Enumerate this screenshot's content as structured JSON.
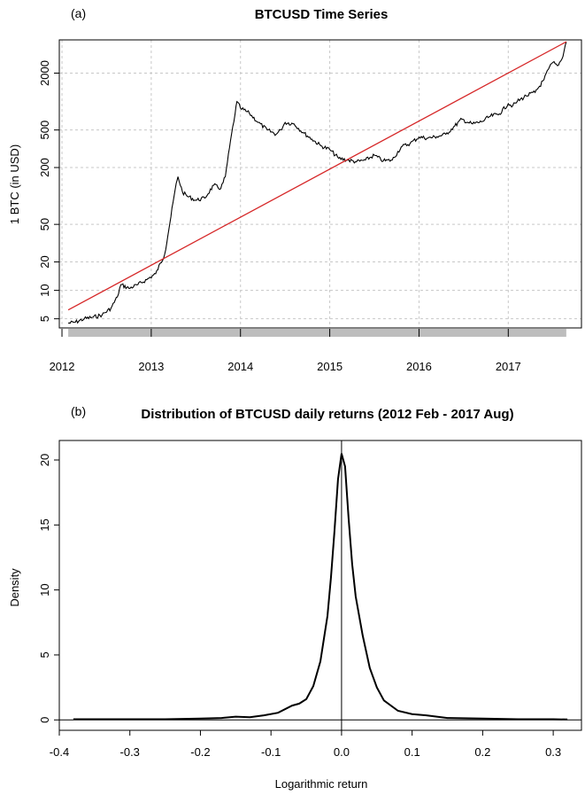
{
  "chart_data": [
    {
      "panel": "(a)",
      "type": "line",
      "title": "BTCUSD Time Series",
      "xlabel": "",
      "ylabel": "1 BTC (in USD)",
      "y_scale": "log",
      "ylim": [
        4,
        4500
      ],
      "xlim": [
        2011.97,
        2017.82
      ],
      "grid": true,
      "x_ticks": [
        2012,
        2013,
        2014,
        2015,
        2016,
        2017
      ],
      "x_tick_labels": [
        "2012",
        "2013",
        "2014",
        "2015",
        "2016",
        "2017"
      ],
      "y_ticks": [
        5,
        10,
        20,
        50,
        200,
        500,
        2000
      ],
      "y_tick_labels": [
        "5",
        "10",
        "20",
        "50",
        "200",
        "500",
        "2000"
      ],
      "series": [
        {
          "kind": "price",
          "color": "#000000",
          "x": [
            2012.07,
            2012.15,
            2012.25,
            2012.35,
            2012.45,
            2012.55,
            2012.62,
            2012.66,
            2012.75,
            2012.85,
            2012.95,
            2013.05,
            2013.15,
            2013.22,
            2013.27,
            2013.3,
            2013.35,
            2013.4,
            2013.5,
            2013.6,
            2013.7,
            2013.78,
            2013.83,
            2013.9,
            2013.94,
            2013.96,
            2014.0,
            2014.1,
            2014.2,
            2014.3,
            2014.4,
            2014.45,
            2014.5,
            2014.6,
            2014.7,
            2014.8,
            2014.9,
            2015.0,
            2015.1,
            2015.2,
            2015.3,
            2015.4,
            2015.5,
            2015.6,
            2015.7,
            2015.8,
            2015.9,
            2016.0,
            2016.1,
            2016.2,
            2016.3,
            2016.4,
            2016.48,
            2016.55,
            2016.6,
            2016.7,
            2016.8,
            2016.9,
            2017.0,
            2017.05,
            2017.1,
            2017.2,
            2017.3,
            2017.4,
            2017.45,
            2017.5,
            2017.55,
            2017.6,
            2017.65
          ],
          "y": [
            4.5,
            4.6,
            5.0,
            5.2,
            5.5,
            6.5,
            8.5,
            11.5,
            10.5,
            11.5,
            13.0,
            15.0,
            24.0,
            60.0,
            120.0,
            160.0,
            110.0,
            100.0,
            90.0,
            95.0,
            130.0,
            120.0,
            160.0,
            450.0,
            750.0,
            1000.0,
            850.0,
            750.0,
            600.0,
            500.0,
            450.0,
            500.0,
            600.0,
            580.0,
            470.0,
            400.0,
            340.0,
            310.0,
            250.0,
            240.0,
            230.0,
            240.0,
            270.0,
            235.0,
            240.0,
            330.0,
            360.0,
            420.0,
            410.0,
            425.0,
            450.0,
            550.0,
            650.0,
            600.0,
            580.0,
            610.0,
            700.0,
            740.0,
            950.0,
            900.0,
            1000.0,
            1150.0,
            1250.0,
            1700.0,
            2200.0,
            2600.0,
            2400.0,
            2800.0,
            4300.0
          ]
        },
        {
          "kind": "trend",
          "color": "#d62728",
          "x": [
            2012.07,
            2017.65
          ],
          "y": [
            6.2,
            4300.0
          ]
        }
      ]
    },
    {
      "panel": "(b)",
      "type": "line",
      "title": "Distribution of BTCUSD daily returns (2012 Feb - 2017 Aug)",
      "xlabel": "Logarithmic return",
      "ylabel": "Density",
      "xlim": [
        -0.4,
        0.34
      ],
      "ylim": [
        -0.8,
        21.5
      ],
      "grid": false,
      "x_ticks": [
        -0.4,
        -0.3,
        -0.2,
        -0.1,
        0.0,
        0.1,
        0.2,
        0.3
      ],
      "x_tick_labels": [
        "-0.4",
        "-0.3",
        "-0.2",
        "-0.1",
        "0.0",
        "0.1",
        "0.2",
        "0.3"
      ],
      "y_ticks": [
        0,
        5,
        10,
        15,
        20
      ],
      "y_tick_labels": [
        "0",
        "5",
        "10",
        "15",
        "20"
      ],
      "series": [
        {
          "kind": "density",
          "color": "#000000",
          "x": [
            -0.38,
            -0.3,
            -0.25,
            -0.2,
            -0.17,
            -0.15,
            -0.13,
            -0.11,
            -0.09,
            -0.07,
            -0.06,
            -0.05,
            -0.04,
            -0.03,
            -0.02,
            -0.015,
            -0.01,
            -0.005,
            0.0,
            0.005,
            0.01,
            0.015,
            0.02,
            0.03,
            0.04,
            0.05,
            0.06,
            0.08,
            0.1,
            0.12,
            0.15,
            0.2,
            0.25,
            0.3,
            0.32
          ],
          "y": [
            0.05,
            0.05,
            0.05,
            0.1,
            0.15,
            0.25,
            0.2,
            0.35,
            0.55,
            1.1,
            1.25,
            1.6,
            2.6,
            4.5,
            8.0,
            11.0,
            14.5,
            18.5,
            20.5,
            19.5,
            15.5,
            12.0,
            9.5,
            6.5,
            4.0,
            2.5,
            1.5,
            0.7,
            0.45,
            0.35,
            0.15,
            0.1,
            0.05,
            0.05,
            0.03
          ]
        }
      ],
      "annotations": [
        {
          "kind": "vertical-line",
          "x": 0.0
        },
        {
          "kind": "horizontal-line",
          "y": 0.0
        }
      ]
    }
  ]
}
